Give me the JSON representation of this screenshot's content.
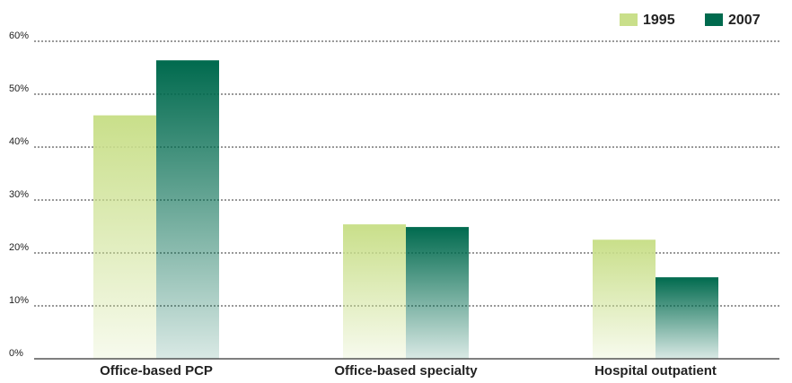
{
  "chart_data": {
    "type": "bar",
    "categories": [
      "Office-based PCP",
      "Office-based specialty",
      "Hospital outpatient"
    ],
    "series": [
      {
        "name": "1995",
        "color": "#c9df8a",
        "values": [
          46,
          25.4,
          22.5
        ]
      },
      {
        "name": "2007",
        "color": "#006a4e",
        "values": [
          56.4,
          24.9,
          15.4
        ]
      }
    ],
    "ylim": [
      0,
      60
    ],
    "yticks": [
      {
        "value": 0,
        "label": "0%"
      },
      {
        "value": 10,
        "label": "10%"
      },
      {
        "value": 20,
        "label": "20%"
      },
      {
        "value": 30,
        "label": "30%"
      },
      {
        "value": 40,
        "label": "40%"
      },
      {
        "value": 50,
        "label": "50%"
      },
      {
        "value": 60,
        "label": "60%"
      }
    ],
    "grid": true,
    "legend": "top-right"
  }
}
